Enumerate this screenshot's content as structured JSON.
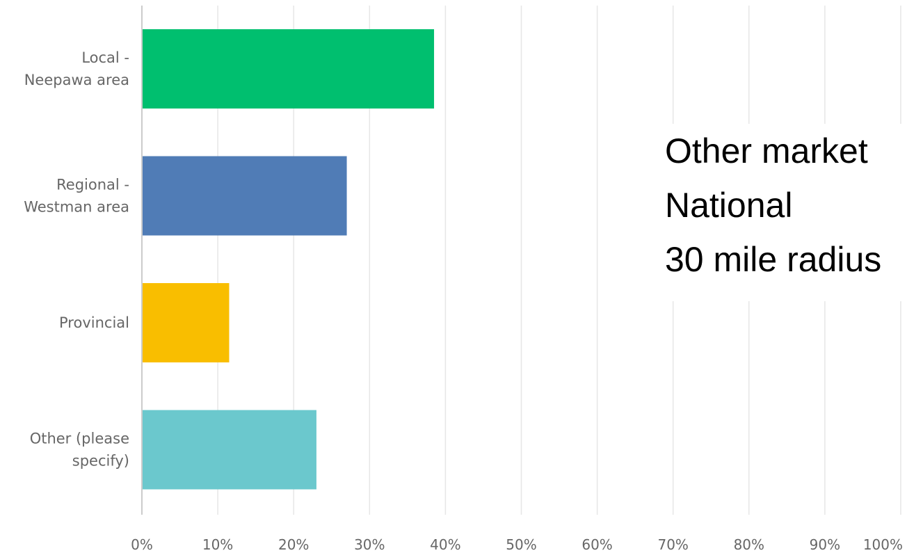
{
  "chart_data": {
    "type": "bar",
    "orientation": "horizontal",
    "categories": [
      [
        "Local -",
        "Neepawa area"
      ],
      [
        "Regional -",
        "Westman area"
      ],
      [
        "Provincial"
      ],
      [
        "Other (please",
        "specify)"
      ]
    ],
    "values": [
      38.5,
      27,
      11.5,
      23
    ],
    "colors": [
      "#00BF6F",
      "#507CB6",
      "#F9BE00",
      "#6BC8CD"
    ],
    "xlim": [
      0,
      100
    ],
    "xticks": [
      "0%",
      "10%",
      "20%",
      "30%",
      "40%",
      "50%",
      "60%",
      "70%",
      "80%",
      "90%",
      "100%"
    ],
    "grid": true,
    "title": "",
    "xlabel": "",
    "ylabel": ""
  },
  "overlay_text": {
    "line1": "Other market",
    "line2": "National",
    "line3": "30 mile radius"
  }
}
